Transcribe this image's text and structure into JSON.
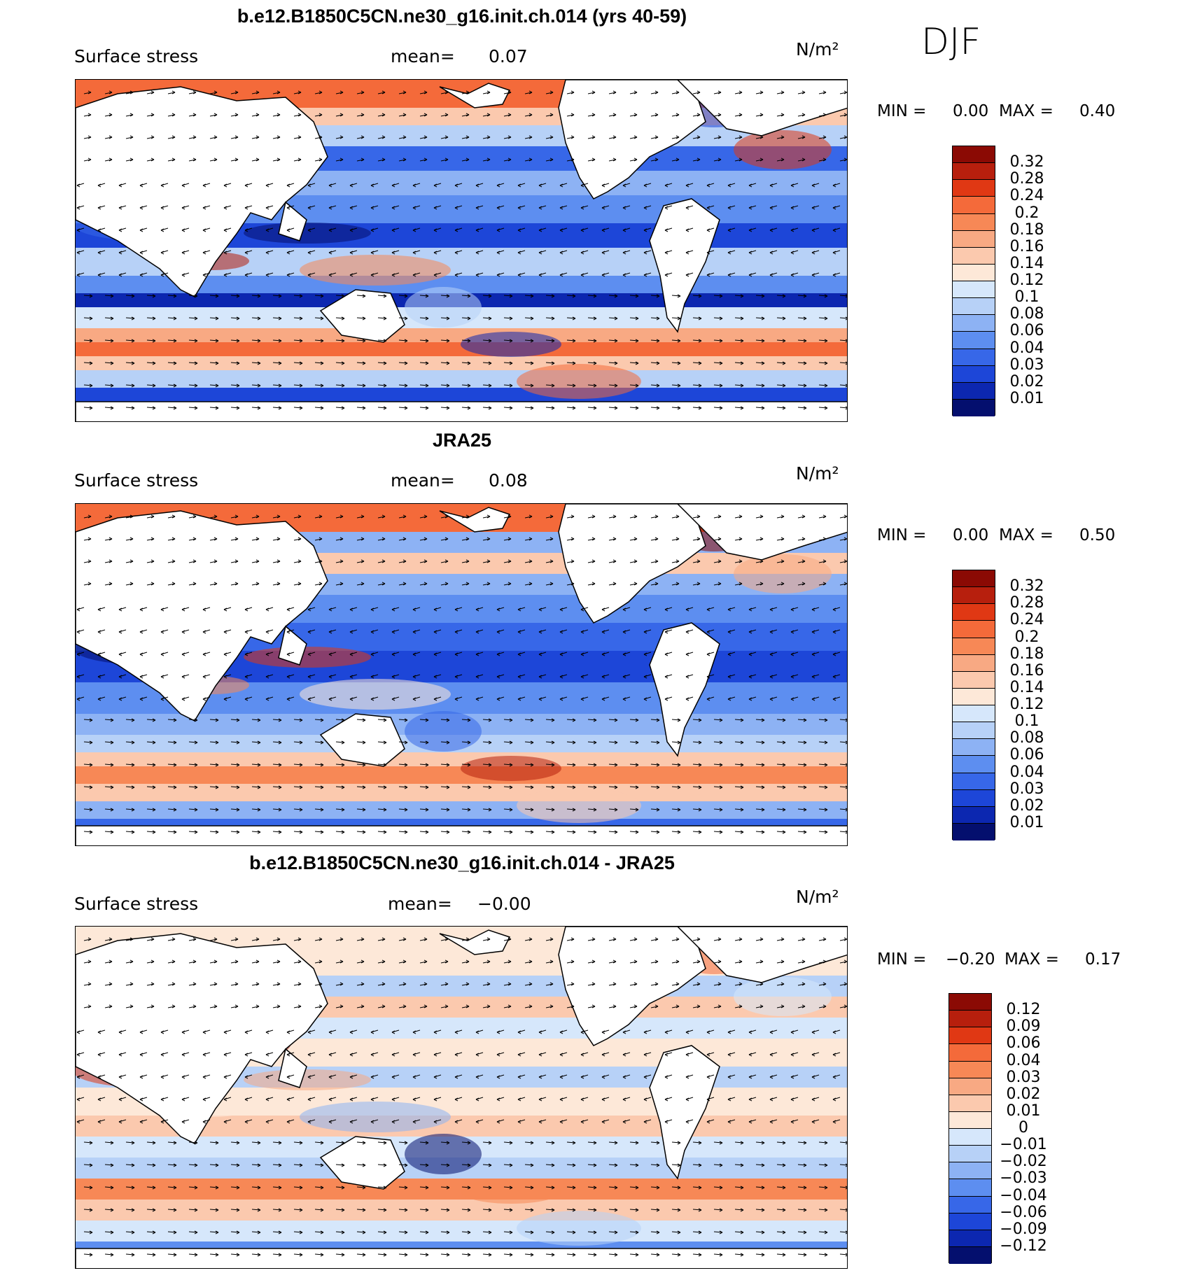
{
  "season": "DJF",
  "panels": [
    {
      "title": "b.e12.B1850C5CN.ne30_g16.init.ch.014 (yrs 40-59)",
      "variable": "Surface stress",
      "mean_label": "mean=",
      "mean_value": "0.07",
      "units": "N/m²",
      "min_label": "MIN =",
      "min_value": "0.00",
      "max_label": "MAX =",
      "max_value": "0.40",
      "levels": [
        "0.32",
        "0.28",
        "0.24",
        "0.2",
        "0.18",
        "0.16",
        "0.14",
        "0.12",
        "0.1",
        "0.08",
        "0.06",
        "0.04",
        "0.03",
        "0.02",
        "0.01"
      ],
      "colors": [
        "#8b0a04",
        "#b71f0d",
        "#e03814",
        "#f46a3a",
        "#f78856",
        "#f8a983",
        "#fbc9ae",
        "#fde8d8",
        "#d6e7fb",
        "#b7d1f7",
        "#8db2f4",
        "#5d8ef0",
        "#3767e8",
        "#1d46d8",
        "#0c27b0",
        "#040f6e"
      ]
    },
    {
      "title": "JRA25",
      "variable": "Surface stress",
      "mean_label": "mean=",
      "mean_value": "0.08",
      "units": "N/m²",
      "min_label": "MIN =",
      "min_value": "0.00",
      "max_label": "MAX =",
      "max_value": "0.50",
      "levels": [
        "0.32",
        "0.28",
        "0.24",
        "0.2",
        "0.18",
        "0.16",
        "0.14",
        "0.12",
        "0.1",
        "0.08",
        "0.06",
        "0.04",
        "0.03",
        "0.02",
        "0.01"
      ],
      "colors": [
        "#8b0a04",
        "#b71f0d",
        "#e03814",
        "#f46a3a",
        "#f78856",
        "#f8a983",
        "#fbc9ae",
        "#fde8d8",
        "#d6e7fb",
        "#b7d1f7",
        "#8db2f4",
        "#5d8ef0",
        "#3767e8",
        "#1d46d8",
        "#0c27b0",
        "#040f6e"
      ]
    },
    {
      "title": "b.e12.B1850C5CN.ne30_g16.init.ch.014 - JRA25",
      "variable": "Surface stress",
      "mean_label": "mean=",
      "mean_value": "−0.00",
      "units": "N/m²",
      "min_label": "MIN =",
      "min_value": "−0.20",
      "max_label": "MAX =",
      "max_value": "0.17",
      "levels": [
        "0.12",
        "0.09",
        "0.06",
        "0.04",
        "0.03",
        "0.02",
        "0.01",
        "0",
        "−0.01",
        "−0.02",
        "−0.03",
        "−0.04",
        "−0.06",
        "−0.09",
        "−0.12"
      ],
      "colors": [
        "#8b0a04",
        "#b71f0d",
        "#e03814",
        "#f46a3a",
        "#f78856",
        "#f8a983",
        "#fbc9ae",
        "#fde8d8",
        "#d6e7fb",
        "#b7d1f7",
        "#8db2f4",
        "#5d8ef0",
        "#3767e8",
        "#1d46d8",
        "#0c27b0",
        "#040f6e"
      ]
    }
  ]
}
